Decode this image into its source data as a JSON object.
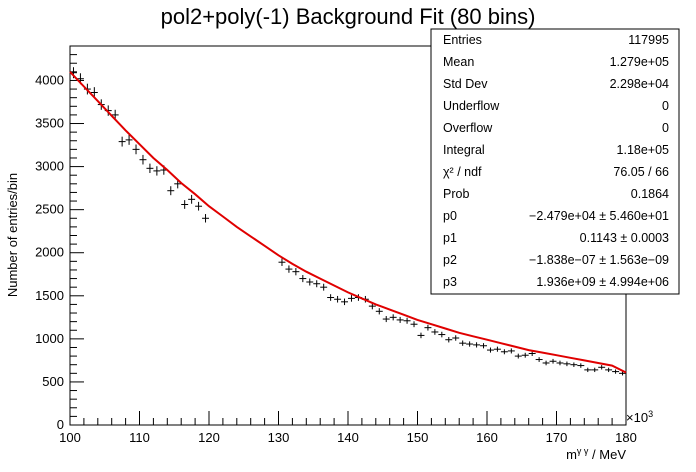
{
  "chart_data": {
    "type": "scatter",
    "title": "pol2+poly(-1) Background Fit (80 bins)",
    "xlabel": "m",
    "xlabel_sup": "γ γ",
    "xlabel_unit": " / MeV",
    "ylabel": "Number of entries/bin",
    "x_multiplier": "×10",
    "x_multiplier_exp": "3",
    "xlim": [
      100,
      180
    ],
    "ylim": [
      0,
      4400
    ],
    "xticks": [
      100,
      110,
      120,
      130,
      140,
      150,
      160,
      170,
      180
    ],
    "yticks": [
      0,
      500,
      1000,
      1500,
      2000,
      2500,
      3000,
      3500,
      4000
    ],
    "bin_width": 1,
    "data_color": "#000000",
    "fit_color": "#e00000",
    "series": [
      {
        "type": "errorbar",
        "x": [
          100.5,
          101.5,
          102.5,
          103.5,
          104.5,
          105.5,
          106.5,
          107.5,
          108.5,
          109.5,
          110.5,
          111.5,
          112.5,
          113.5,
          114.5,
          115.5,
          116.5,
          117.5,
          118.5,
          119.5,
          130.5,
          131.5,
          132.5,
          133.5,
          134.5,
          135.5,
          136.5,
          137.5,
          138.5,
          139.5,
          140.5,
          141.5,
          142.5,
          143.5,
          144.5,
          145.5,
          146.5,
          147.5,
          148.5,
          149.5,
          150.5,
          151.5,
          152.5,
          153.5,
          154.5,
          155.5,
          156.5,
          157.5,
          158.5,
          159.5,
          160.5,
          161.5,
          162.5,
          163.5,
          164.5,
          165.5,
          166.5,
          167.5,
          168.5,
          169.5,
          170.5,
          171.5,
          172.5,
          173.5,
          174.5,
          175.5,
          176.5,
          177.5,
          178.5,
          179.5
        ],
        "y": [
          4090,
          4020,
          3900,
          3860,
          3720,
          3650,
          3600,
          3290,
          3310,
          3200,
          3080,
          2980,
          2950,
          2960,
          2720,
          2800,
          2560,
          2620,
          2540,
          2400,
          1890,
          1810,
          1780,
          1700,
          1660,
          1640,
          1600,
          1480,
          1460,
          1430,
          1470,
          1480,
          1460,
          1380,
          1320,
          1230,
          1250,
          1220,
          1210,
          1170,
          1040,
          1130,
          1080,
          1050,
          990,
          1010,
          950,
          940,
          930,
          920,
          870,
          880,
          850,
          860,
          800,
          810,
          830,
          760,
          720,
          740,
          720,
          710,
          700,
          690,
          640,
          640,
          670,
          640,
          620,
          600
        ]
      },
      {
        "type": "fit",
        "x": [
          100,
          102,
          104,
          106,
          108,
          110,
          112,
          114,
          116,
          118,
          120,
          122,
          124,
          126,
          128,
          130,
          132,
          134,
          136,
          138,
          140,
          142,
          144,
          146,
          148,
          150,
          152,
          154,
          156,
          158,
          160,
          162,
          164,
          166,
          168,
          170,
          172,
          174,
          176,
          178,
          180
        ],
        "y": [
          4100,
          3930,
          3760,
          3590,
          3420,
          3260,
          3100,
          2960,
          2810,
          2680,
          2540,
          2420,
          2300,
          2190,
          2080,
          1970,
          1870,
          1780,
          1700,
          1620,
          1540,
          1470,
          1400,
          1340,
          1280,
          1220,
          1170,
          1120,
          1070,
          1030,
          990,
          950,
          910,
          870,
          840,
          810,
          780,
          750,
          720,
          690,
          610
        ]
      }
    ]
  },
  "stats": {
    "rows": [
      {
        "label": "Entries",
        "value": "117995"
      },
      {
        "label": "Mean",
        "value": "1.279e+05"
      },
      {
        "label": "Std Dev",
        "value": "2.298e+04"
      },
      {
        "label": "Underflow",
        "value": "0"
      },
      {
        "label": "Overflow",
        "value": "0"
      },
      {
        "label": "Integral",
        "value": "1.18e+05"
      },
      {
        "label": "χ² / ndf",
        "value": "76.05 / 66"
      },
      {
        "label": "Prob",
        "value": "0.1864"
      },
      {
        "label": "p0",
        "value": "−2.479e+04 ± 5.460e+01"
      },
      {
        "label": "p1",
        "value": "0.1143 ± 0.0003"
      },
      {
        "label": "p2",
        "value": "−1.838e−07 ± 1.563e−09"
      },
      {
        "label": "p3",
        "value": "1.936e+09 ± 4.994e+06"
      }
    ]
  }
}
